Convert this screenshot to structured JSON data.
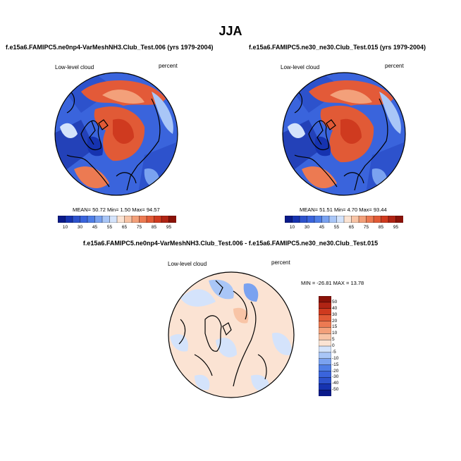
{
  "figure": {
    "title": "JJA",
    "panels": [
      {
        "title": "f.e15a6.FAMIPC5.ne0np4-VarMeshNH3.Club_Test.006 (yrs 1979-2004)",
        "variable": "Low-level cloud",
        "units": "percent",
        "stats_label": "MEAN=  50.72  Min=   1.50  Max=  94.57",
        "mean": 50.72,
        "min": 1.5,
        "max": 94.57
      },
      {
        "title": "f.e15a6.FAMIPC5.ne30_ne30.Club_Test.015 (yrs 1979-2004)",
        "variable": "Low-level cloud",
        "units": "percent",
        "stats_label": "MEAN=  51.51  Min=   4.70  Max=  93.44",
        "mean": 51.51,
        "min": 4.7,
        "max": 93.44
      }
    ],
    "diff_panel": {
      "title": "f.e15a6.FAMIPC5.ne0np4-VarMeshNH3.Club_Test.006 - f.e15a6.FAMIPC5.ne30_ne30.Club_Test.015",
      "variable": "Low-level cloud",
      "units": "percent",
      "stats_label": "MIN = -26.81  MAX =  13.78",
      "min": -26.81,
      "max": 13.78
    },
    "colorbar_main": {
      "labels": [
        "10",
        "30",
        "45",
        "55",
        "65",
        "75",
        "85",
        "95"
      ],
      "colors": [
        "#0a1a8a",
        "#1633b0",
        "#2d52cc",
        "#3a64dc",
        "#4f7ee6",
        "#7aa2f0",
        "#a9c6f7",
        "#d4e3fb",
        "#fbe3d3",
        "#f8c4a6",
        "#f3a07a",
        "#ec7a52",
        "#e15a36",
        "#cf3a1f",
        "#b02414",
        "#8a1208"
      ]
    },
    "colorbar_diff": {
      "labels": [
        "50",
        "40",
        "30",
        "20",
        "15",
        "10",
        "5",
        "0",
        "-5",
        "-10",
        "-15",
        "-20",
        "-30",
        "-40",
        "-50"
      ],
      "colors": [
        "#8a1208",
        "#b02414",
        "#cf3a1f",
        "#e15a36",
        "#ec7a52",
        "#f3a07a",
        "#f8c4a6",
        "#fbe3d3",
        "#d4e3fb",
        "#a9c6f7",
        "#7aa2f0",
        "#4f7ee6",
        "#3a64dc",
        "#2d52cc",
        "#1633b0",
        "#0a1a8a"
      ]
    }
  }
}
